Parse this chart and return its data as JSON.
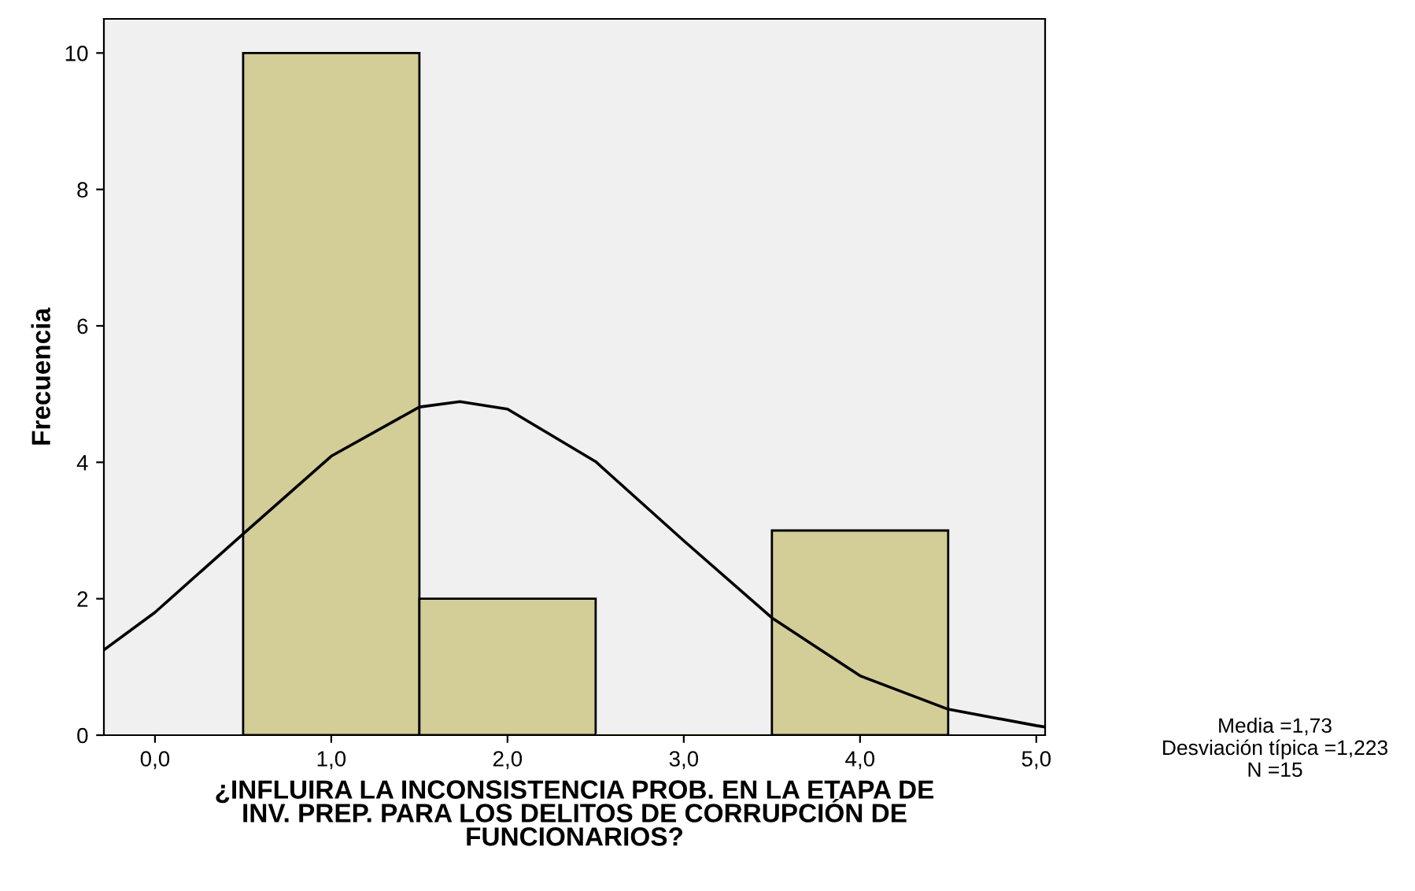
{
  "chart_data": {
    "type": "histogram",
    "xlabel": "¿INFLUIRA LA INCONSISTENCIA PROB. EN LA ETAPA DE\nINV. PREP. PARA LOS DELITOS DE CORRUPCIÓN DE\nFUNCIONARIOS?",
    "ylabel": "Frecuencia",
    "series": [
      {
        "color": "#d3ce97",
        "bins": [
          0.5,
          1.5,
          2.5,
          3.5,
          4.5
        ],
        "values": [
          10,
          2,
          0,
          3
        ]
      },
      {
        "type": "line",
        "color": "#000000",
        "x": [
          -0.29,
          0,
          0.5,
          1,
          1.5,
          1.73,
          2,
          2.5,
          3,
          3.5,
          4,
          4.5,
          5,
          5.05
        ],
        "values": [
          1.25,
          1.8,
          2.95,
          4.09,
          4.81,
          4.89,
          4.78,
          4.01,
          2.85,
          1.72,
          0.87,
          0.38,
          0.14,
          0.12
        ]
      }
    ],
    "xlim": [
      -0.29,
      5.05
    ],
    "xticks": [
      {
        "value": 0,
        "label": "0,0"
      },
      {
        "value": 1,
        "label": "1,0"
      },
      {
        "value": 2,
        "label": "2,0"
      },
      {
        "value": 3,
        "label": "3,0"
      },
      {
        "value": 4,
        "label": "4,0"
      },
      {
        "value": 5,
        "label": "5,0"
      }
    ],
    "ylim": [
      0,
      10.5
    ],
    "yticks": [
      0,
      2,
      4,
      6,
      8,
      10
    ],
    "grid": false,
    "annotations": [
      "Media =1,73",
      "Desviación típica =1,223",
      "N =15"
    ]
  }
}
